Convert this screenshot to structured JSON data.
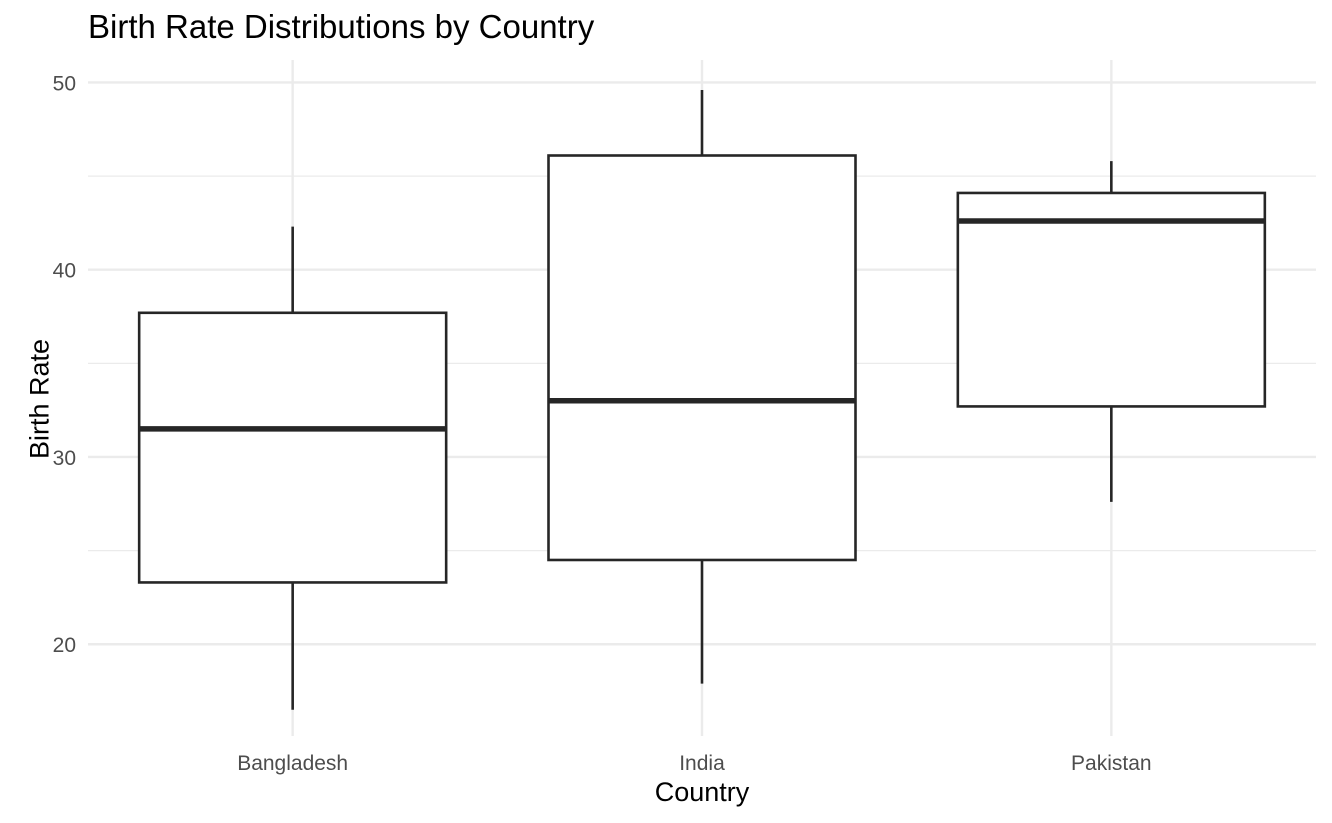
{
  "chart_data": {
    "type": "boxplot",
    "title": "Birth Rate Distributions by Country",
    "xlabel": "Country",
    "ylabel": "Birth Rate",
    "categories": [
      "Bangladesh",
      "India",
      "Pakistan"
    ],
    "boxes": [
      {
        "category": "Bangladesh",
        "whisker_low": 16.5,
        "q1": 23.3,
        "median": 31.5,
        "q3": 37.7,
        "whisker_high": 42.3
      },
      {
        "category": "India",
        "whisker_low": 17.9,
        "q1": 24.5,
        "median": 33.0,
        "q3": 46.1,
        "whisker_high": 49.6
      },
      {
        "category": "Pakistan",
        "whisker_low": 27.6,
        "q1": 32.7,
        "median": 42.6,
        "q3": 44.1,
        "whisker_high": 45.8
      }
    ],
    "yticks": [
      20,
      30,
      40,
      50
    ],
    "ylim": [
      15.1,
      51.2
    ],
    "grid": true,
    "colors": {
      "box_stroke": "#262626",
      "grid": "#ebebeb",
      "tick_text": "#4d4d4d",
      "background": "#ffffff"
    }
  }
}
